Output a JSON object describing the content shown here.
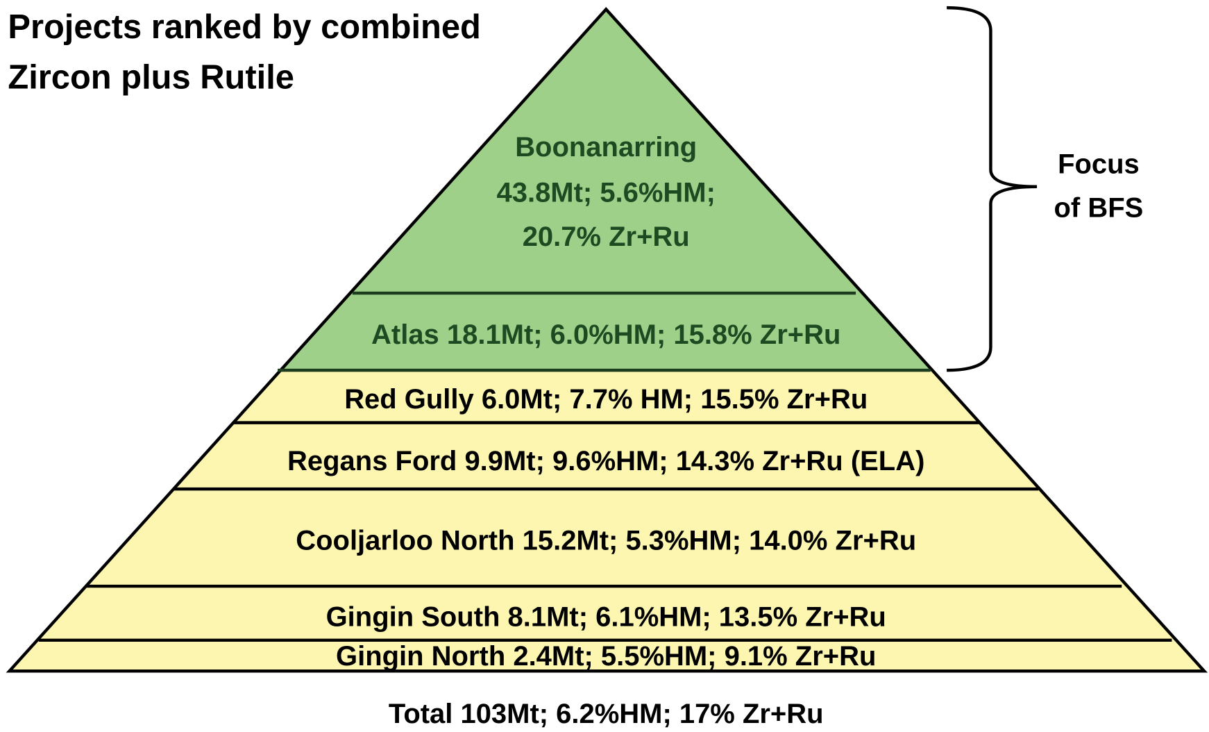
{
  "title": [
    "Projects ranked by combined",
    "Zircon plus Rutile"
  ],
  "layers": [
    {
      "lines": [
        "Boonanarring",
        "43.8Mt; 5.6%HM;",
        "20.7% Zr+Ru"
      ]
    },
    {
      "lines": [
        "Atlas 18.1Mt; 6.0%HM; 15.8% Zr+Ru"
      ]
    },
    {
      "lines": [
        "Red Gully  6.0Mt; 7.7% HM; 15.5% Zr+Ru"
      ]
    },
    {
      "lines": [
        "Regans Ford  9.9Mt; 9.6%HM; 14.3% Zr+Ru (ELA)"
      ]
    },
    {
      "lines": [
        "Cooljarloo North  15.2Mt; 5.3%HM; 14.0% Zr+Ru"
      ]
    },
    {
      "lines": [
        "Gingin South   8.1Mt; 6.1%HM; 13.5% Zr+Ru"
      ]
    },
    {
      "lines": [
        "Gingin North   2.4Mt; 5.5%HM; 9.1% Zr+Ru"
      ]
    }
  ],
  "bracket_label": [
    "Focus",
    "of BFS"
  ],
  "total": "Total  103Mt; 6.2%HM; 17% Zr+Ru"
}
